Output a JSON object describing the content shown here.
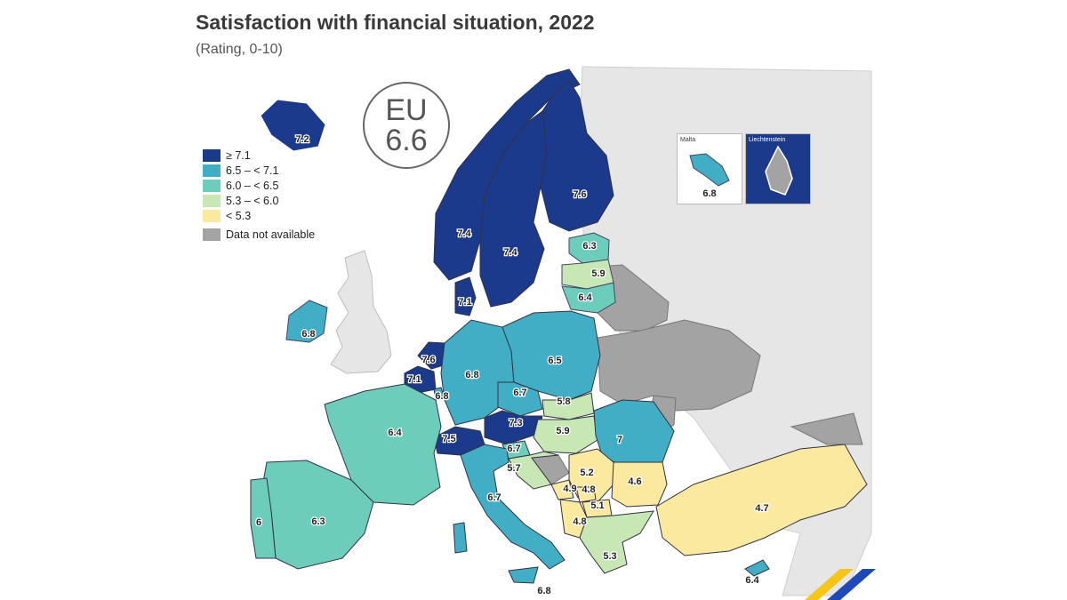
{
  "title": "Satisfaction with financial situation, 2022",
  "subtitle": "(Rating, 0-10)",
  "eu": {
    "label": "EU",
    "value": "6.6"
  },
  "legend": [
    {
      "label": "≥ 7.1",
      "color": "#1b3a8b"
    },
    {
      "label": "6.5 – < 7.1",
      "color": "#41aec6"
    },
    {
      "label": "6.0 – < 6.5",
      "color": "#6ccdbb"
    },
    {
      "label": "5.3 – < 6.0",
      "color": "#c7e8b4"
    },
    {
      "label": "< 5.3",
      "color": "#fbe9a0"
    },
    {
      "label": "Data not available",
      "color": "#a3a3a3"
    }
  ],
  "insets": {
    "malta": {
      "label": "Malta",
      "value": "6.8"
    },
    "liechtenstein": {
      "label": "Liechtenstein"
    }
  },
  "regions": [
    {
      "id": "iceland",
      "value": "7.2"
    },
    {
      "id": "norway",
      "value": "7.4"
    },
    {
      "id": "sweden",
      "value": "7.4"
    },
    {
      "id": "finland",
      "value": "7.6"
    },
    {
      "id": "estonia",
      "value": "6.3"
    },
    {
      "id": "latvia",
      "value": "5.9"
    },
    {
      "id": "lithuania",
      "value": "6.4"
    },
    {
      "id": "denmark",
      "value": "7.1"
    },
    {
      "id": "ireland",
      "value": "6.8"
    },
    {
      "id": "netherlands",
      "value": "7.6"
    },
    {
      "id": "belgium",
      "value": "7.1"
    },
    {
      "id": "luxembourg",
      "value": "6.8"
    },
    {
      "id": "germany",
      "value": "6.8"
    },
    {
      "id": "poland",
      "value": "6.5"
    },
    {
      "id": "czechia",
      "value": "6.7"
    },
    {
      "id": "slovakia",
      "value": "5.8"
    },
    {
      "id": "austria",
      "value": "7.3"
    },
    {
      "id": "hungary",
      "value": "5.9"
    },
    {
      "id": "romania",
      "value": "7"
    },
    {
      "id": "switzerland",
      "value": "7.5"
    },
    {
      "id": "slovenia",
      "value": "6.7"
    },
    {
      "id": "croatia",
      "value": "5.7"
    },
    {
      "id": "france",
      "value": "6.4"
    },
    {
      "id": "spain",
      "value": "6.3"
    },
    {
      "id": "portugal",
      "value": "6"
    },
    {
      "id": "italy",
      "value": "6.7"
    },
    {
      "id": "serbia",
      "value": "5.2"
    },
    {
      "id": "bulgaria",
      "value": "4.6"
    },
    {
      "id": "montenegro",
      "value": "4.9"
    },
    {
      "id": "kosovo",
      "value": "4.8"
    },
    {
      "id": "north-macedonia",
      "value": "5.1"
    },
    {
      "id": "albania",
      "value": "4.8"
    },
    {
      "id": "greece",
      "value": "5.3"
    },
    {
      "id": "turkey",
      "value": "4.7"
    },
    {
      "id": "cyprus",
      "value": "6.4"
    },
    {
      "id": "malta",
      "value": "6.8"
    }
  ]
}
